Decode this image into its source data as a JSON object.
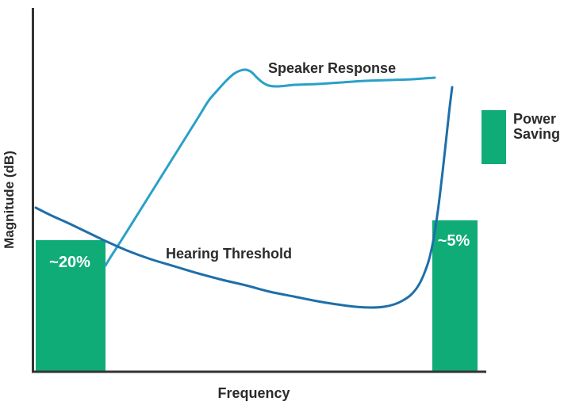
{
  "chart_data": {
    "type": "line",
    "title": "",
    "xlabel": "Frequency",
    "ylabel": "Magnitude (dB)",
    "background": "#ffffff",
    "axis_color": "#333333",
    "text_color": "#2b2b2b",
    "bar_color": "#10AC77",
    "bar_baseline": 467.5,
    "grid": "off",
    "series": [
      {
        "name": "Speaker Response",
        "color": "#2AA0C8",
        "label_pos": {
          "x": 338,
          "y": 92
        },
        "points": [
          [
            133,
            335
          ],
          [
            139,
            325
          ],
          [
            148,
            311
          ],
          [
            160,
            292
          ],
          [
            175,
            268
          ],
          [
            190,
            244
          ],
          [
            205,
            220
          ],
          [
            220,
            196
          ],
          [
            235,
            172
          ],
          [
            250,
            148
          ],
          [
            263,
            127
          ],
          [
            275,
            113
          ],
          [
            285,
            102
          ],
          [
            295,
            93
          ],
          [
            303,
            89
          ],
          [
            310,
            88
          ],
          [
            317,
            91
          ],
          [
            324,
            98
          ],
          [
            331,
            104
          ],
          [
            339,
            108
          ],
          [
            351,
            109
          ],
          [
            372,
            107
          ],
          [
            400,
            106
          ],
          [
            430,
            104
          ],
          [
            460,
            102
          ],
          [
            490,
            101
          ],
          [
            520,
            100
          ],
          [
            548,
            98
          ]
        ]
      },
      {
        "name": "Hearing Threshold",
        "color": "#1E6FA9",
        "label_pos": {
          "x": 209,
          "y": 326
        },
        "points": [
          [
            45,
            262
          ],
          [
            65,
            272
          ],
          [
            85,
            281
          ],
          [
            110,
            293
          ],
          [
            135,
            305
          ],
          [
            160,
            316
          ],
          [
            190,
            327
          ],
          [
            220,
            336
          ],
          [
            250,
            345
          ],
          [
            280,
            353
          ],
          [
            310,
            360
          ],
          [
            340,
            368
          ],
          [
            370,
            374
          ],
          [
            400,
            380
          ],
          [
            425,
            384
          ],
          [
            448,
            387
          ],
          [
            468,
            388
          ],
          [
            484,
            387
          ],
          [
            497,
            384
          ],
          [
            508,
            379
          ],
          [
            518,
            372
          ],
          [
            527,
            361
          ],
          [
            534,
            347
          ],
          [
            541,
            327
          ],
          [
            547,
            299
          ],
          [
            552,
            266
          ],
          [
            557,
            225
          ],
          [
            562,
            180
          ],
          [
            566,
            143
          ],
          [
            570,
            110
          ]
        ]
      }
    ],
    "bars": [
      {
        "label": "~20%",
        "x": 45,
        "width": 88,
        "top": 303,
        "label_x": 88,
        "label_y": 337
      },
      {
        "label": "~5%",
        "x": 545,
        "width": 57,
        "top": 278,
        "label_x": 572,
        "label_y": 310
      }
    ],
    "legend": {
      "label": "Power Saving",
      "color": "#10AC77",
      "position": "right"
    },
    "axes": {
      "x": {
        "x1": 40,
        "x2": 613,
        "y": 469
      },
      "y": {
        "x": 41.5,
        "y1": 10,
        "y2": 470.5
      }
    },
    "xlabel_pos": {
      "x": 320,
      "y": 502
    },
    "ylabel_pos": {
      "x": 17,
      "y": 252
    }
  }
}
